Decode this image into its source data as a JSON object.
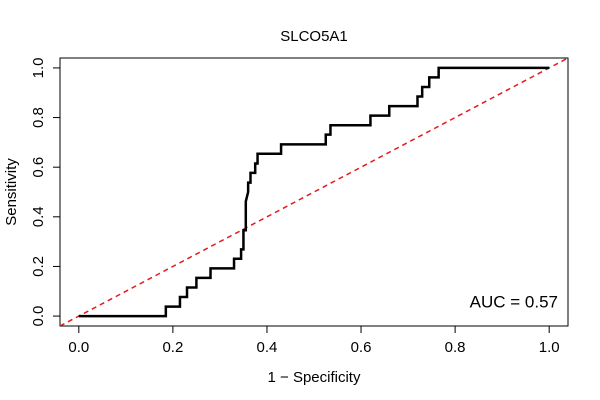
{
  "chart_data": {
    "type": "line",
    "title": "SLCO5A1",
    "x_label": "1 − Specificity",
    "y_label": "Sensitivity",
    "annotation": "AUC = 0.57",
    "xlim": [
      -0.04,
      1.04
    ],
    "ylim": [
      -0.04,
      1.04
    ],
    "xticks": [
      {
        "value": 0,
        "label": "0.0"
      },
      0.2,
      0.4,
      0.6,
      0.8,
      {
        "value": 1,
        "label": "1.0"
      }
    ],
    "yticks": [
      {
        "value": 0,
        "label": "0.0"
      },
      0.2,
      0.4,
      0.6,
      0.8,
      {
        "value": 1,
        "label": "1.0"
      }
    ],
    "series": [
      {
        "color": "#000000",
        "x": [
          0,
          0.185,
          0.185,
          0.215,
          0.215,
          0.23,
          0.23,
          0.25,
          0.25,
          0.28,
          0.28,
          0.33,
          0.33,
          0.345,
          0.345,
          0.35,
          0.35,
          0.355,
          0.355,
          0.36,
          0.36,
          0.365,
          0.365,
          0.375,
          0.375,
          0.38,
          0.38,
          0.43,
          0.43,
          0.525,
          0.525,
          0.535,
          0.535,
          0.62,
          0.62,
          0.66,
          0.66,
          0.72,
          0.72,
          0.73,
          0.73,
          0.745,
          0.745,
          0.765,
          0.765,
          1
        ],
        "values": [
          0,
          0,
          0.038,
          0.038,
          0.077,
          0.077,
          0.115,
          0.115,
          0.154,
          0.154,
          0.192,
          0.192,
          0.231,
          0.231,
          0.269,
          0.269,
          0.346,
          0.346,
          0.462,
          0.5,
          0.538,
          0.538,
          0.577,
          0.577,
          0.615,
          0.615,
          0.654,
          0.654,
          0.692,
          0.692,
          0.731,
          0.731,
          0.769,
          0.769,
          0.808,
          0.808,
          0.846,
          0.846,
          0.885,
          0.885,
          0.923,
          0.923,
          0.962,
          0.962,
          1,
          1
        ]
      }
    ],
    "reference_line": {
      "slope": 1,
      "intercept": 0,
      "color": "#e41a1c",
      "dashed": true
    }
  }
}
